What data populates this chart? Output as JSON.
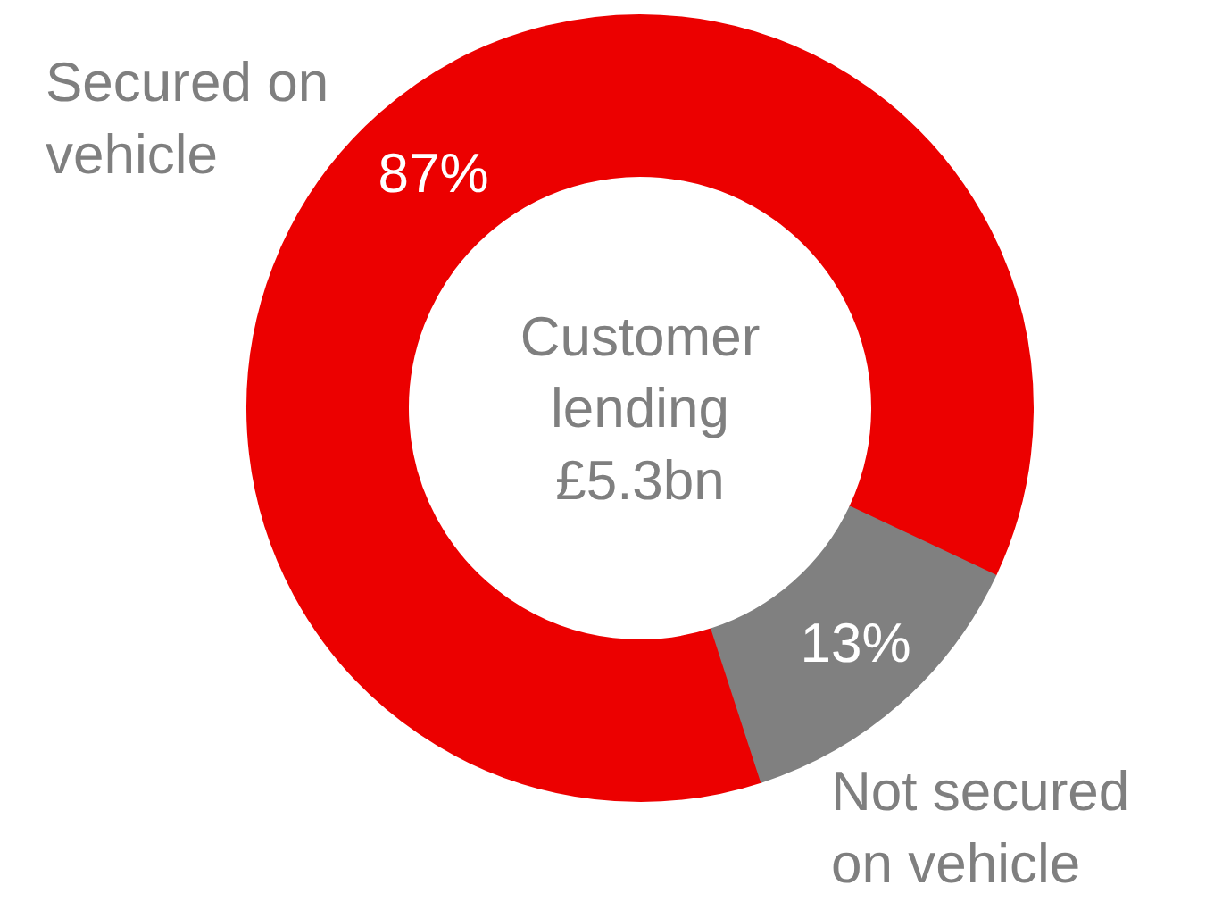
{
  "chart_data": {
    "type": "donut",
    "title": "Customer\nlending\n£5.3bn",
    "categories": [
      "Secured on\nvehicle",
      "Not secured\non vehicle"
    ],
    "values": [
      87,
      13
    ],
    "colors": [
      "#ec0000",
      "#808080"
    ],
    "data_labels": true,
    "value_labels": [
      "87%",
      "13%"
    ]
  }
}
